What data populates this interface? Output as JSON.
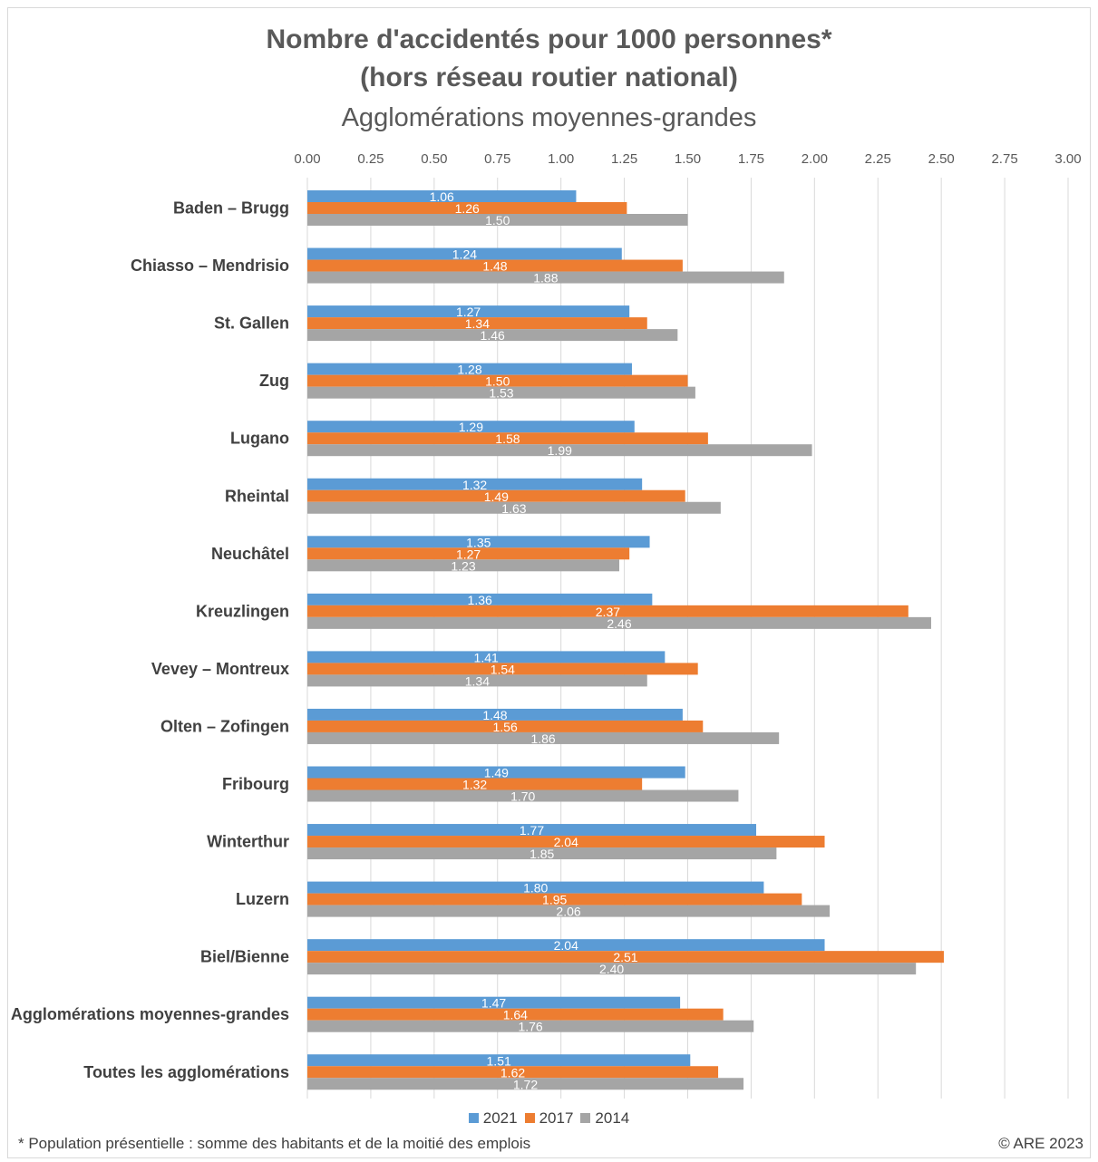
{
  "chart_data": {
    "type": "bar",
    "orientation": "horizontal",
    "title": "Nombre d'accidentés pour 1000 personnes*",
    "title_line2": "(hors réseau routier national)",
    "subtitle": "Agglomérations moyennes-grandes",
    "categories": [
      "Baden – Brugg",
      "Chiasso – Mendrisio",
      "St. Gallen",
      "Zug",
      "Lugano",
      "Rheintal",
      "Neuchâtel",
      "Kreuzlingen",
      "Vevey – Montreux",
      "Olten – Zofingen",
      "Fribourg",
      "Winterthur",
      "Luzern",
      "Biel/Bienne",
      "Agglomérations moyennes-grandes",
      "Toutes les agglomérations"
    ],
    "series": [
      {
        "name": "2021",
        "color": "#5b9bd5",
        "values": [
          1.06,
          1.24,
          1.27,
          1.28,
          1.29,
          1.32,
          1.35,
          1.36,
          1.41,
          1.48,
          1.49,
          1.77,
          1.8,
          2.04,
          1.47,
          1.51
        ]
      },
      {
        "name": "2017",
        "color": "#ed7d31",
        "values": [
          1.26,
          1.48,
          1.34,
          1.5,
          1.58,
          1.49,
          1.27,
          2.37,
          1.54,
          1.56,
          1.32,
          2.04,
          1.95,
          2.51,
          1.64,
          1.62
        ]
      },
      {
        "name": "2014",
        "color": "#a5a5a5",
        "values": [
          1.5,
          1.88,
          1.46,
          1.53,
          1.99,
          1.63,
          1.23,
          2.46,
          1.34,
          1.86,
          1.7,
          1.85,
          2.06,
          2.4,
          1.76,
          1.72
        ]
      }
    ],
    "xlim": [
      0,
      3
    ],
    "xticks": [
      "0.00",
      "0.25",
      "0.50",
      "0.75",
      "1.00",
      "1.25",
      "1.50",
      "1.75",
      "2.00",
      "2.25",
      "2.50",
      "2.75",
      "3.00"
    ],
    "grid": "vertical",
    "legend_position": "bottom"
  },
  "footnote": "* Population présentielle : somme des habitants et de la moitié des emplois",
  "copyright": "© ARE 2023"
}
